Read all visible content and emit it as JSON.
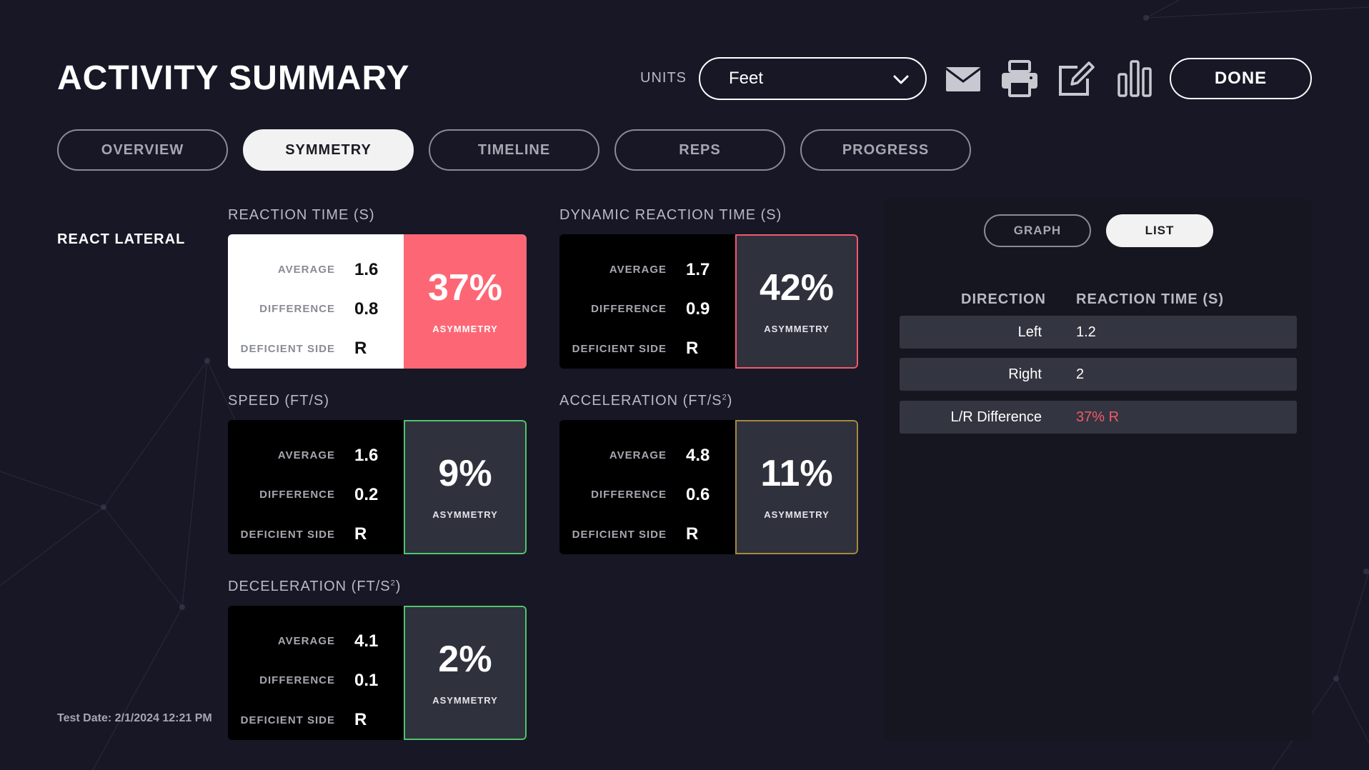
{
  "header": {
    "title": "ACTIVITY SUMMARY",
    "units_label": "UNITS",
    "units_value": "Feet",
    "done_label": "DONE"
  },
  "icons": {
    "email": "email-icon",
    "print": "print-icon",
    "edit": "edit-icon",
    "chart": "bar-chart-icon"
  },
  "tabs": [
    {
      "label": "OVERVIEW",
      "active": false
    },
    {
      "label": "SYMMETRY",
      "active": true
    },
    {
      "label": "TIMELINE",
      "active": false
    },
    {
      "label": "REPS",
      "active": false
    },
    {
      "label": "PROGRESS",
      "active": false
    }
  ],
  "section": {
    "name": "REACT LATERAL",
    "test_date": "Test Date: 2/1/2024 12:21 PM"
  },
  "labels": {
    "average": "AVERAGE",
    "difference": "DIFFERENCE",
    "deficient_side": "DEFICIENT SIDE",
    "asymmetry": "ASYMMETRY"
  },
  "metrics": {
    "reaction_time": {
      "title": "REACTION TIME (S)",
      "average": "1.6",
      "difference": "0.8",
      "deficient_side": "R",
      "asymmetry": "37%"
    },
    "dynamic_reaction_time": {
      "title": "DYNAMIC REACTION TIME (S)",
      "average": "1.7",
      "difference": "0.9",
      "deficient_side": "R",
      "asymmetry": "42%"
    },
    "speed": {
      "title": "SPEED (FT/S)",
      "average": "1.6",
      "difference": "0.2",
      "deficient_side": "R",
      "asymmetry": "9%"
    },
    "acceleration": {
      "title": "ACCELERATION (FT/S",
      "title_sup": "2",
      "title_end": ")",
      "average": "4.8",
      "difference": "0.6",
      "deficient_side": "R",
      "asymmetry": "11%"
    },
    "deceleration": {
      "title": "DECELERATION (FT/S",
      "title_sup": "2",
      "title_end": ")",
      "average": "4.1",
      "difference": "0.1",
      "deficient_side": "R",
      "asymmetry": "2%"
    }
  },
  "panel": {
    "graph_label": "GRAPH",
    "list_label": "LIST",
    "col_direction": "DIRECTION",
    "col_reaction_time": "REACTION TIME (S)",
    "rows": [
      {
        "direction": "Left",
        "value": "1.2"
      },
      {
        "direction": "Right",
        "value": "2"
      },
      {
        "direction": "L/R Difference",
        "value": "37% R"
      }
    ]
  },
  "colors": {
    "background": "#171726",
    "asym_red": "#fd6775",
    "border_red": "#f3596a",
    "border_green": "#4fc46b",
    "border_gold": "#a6893d"
  }
}
